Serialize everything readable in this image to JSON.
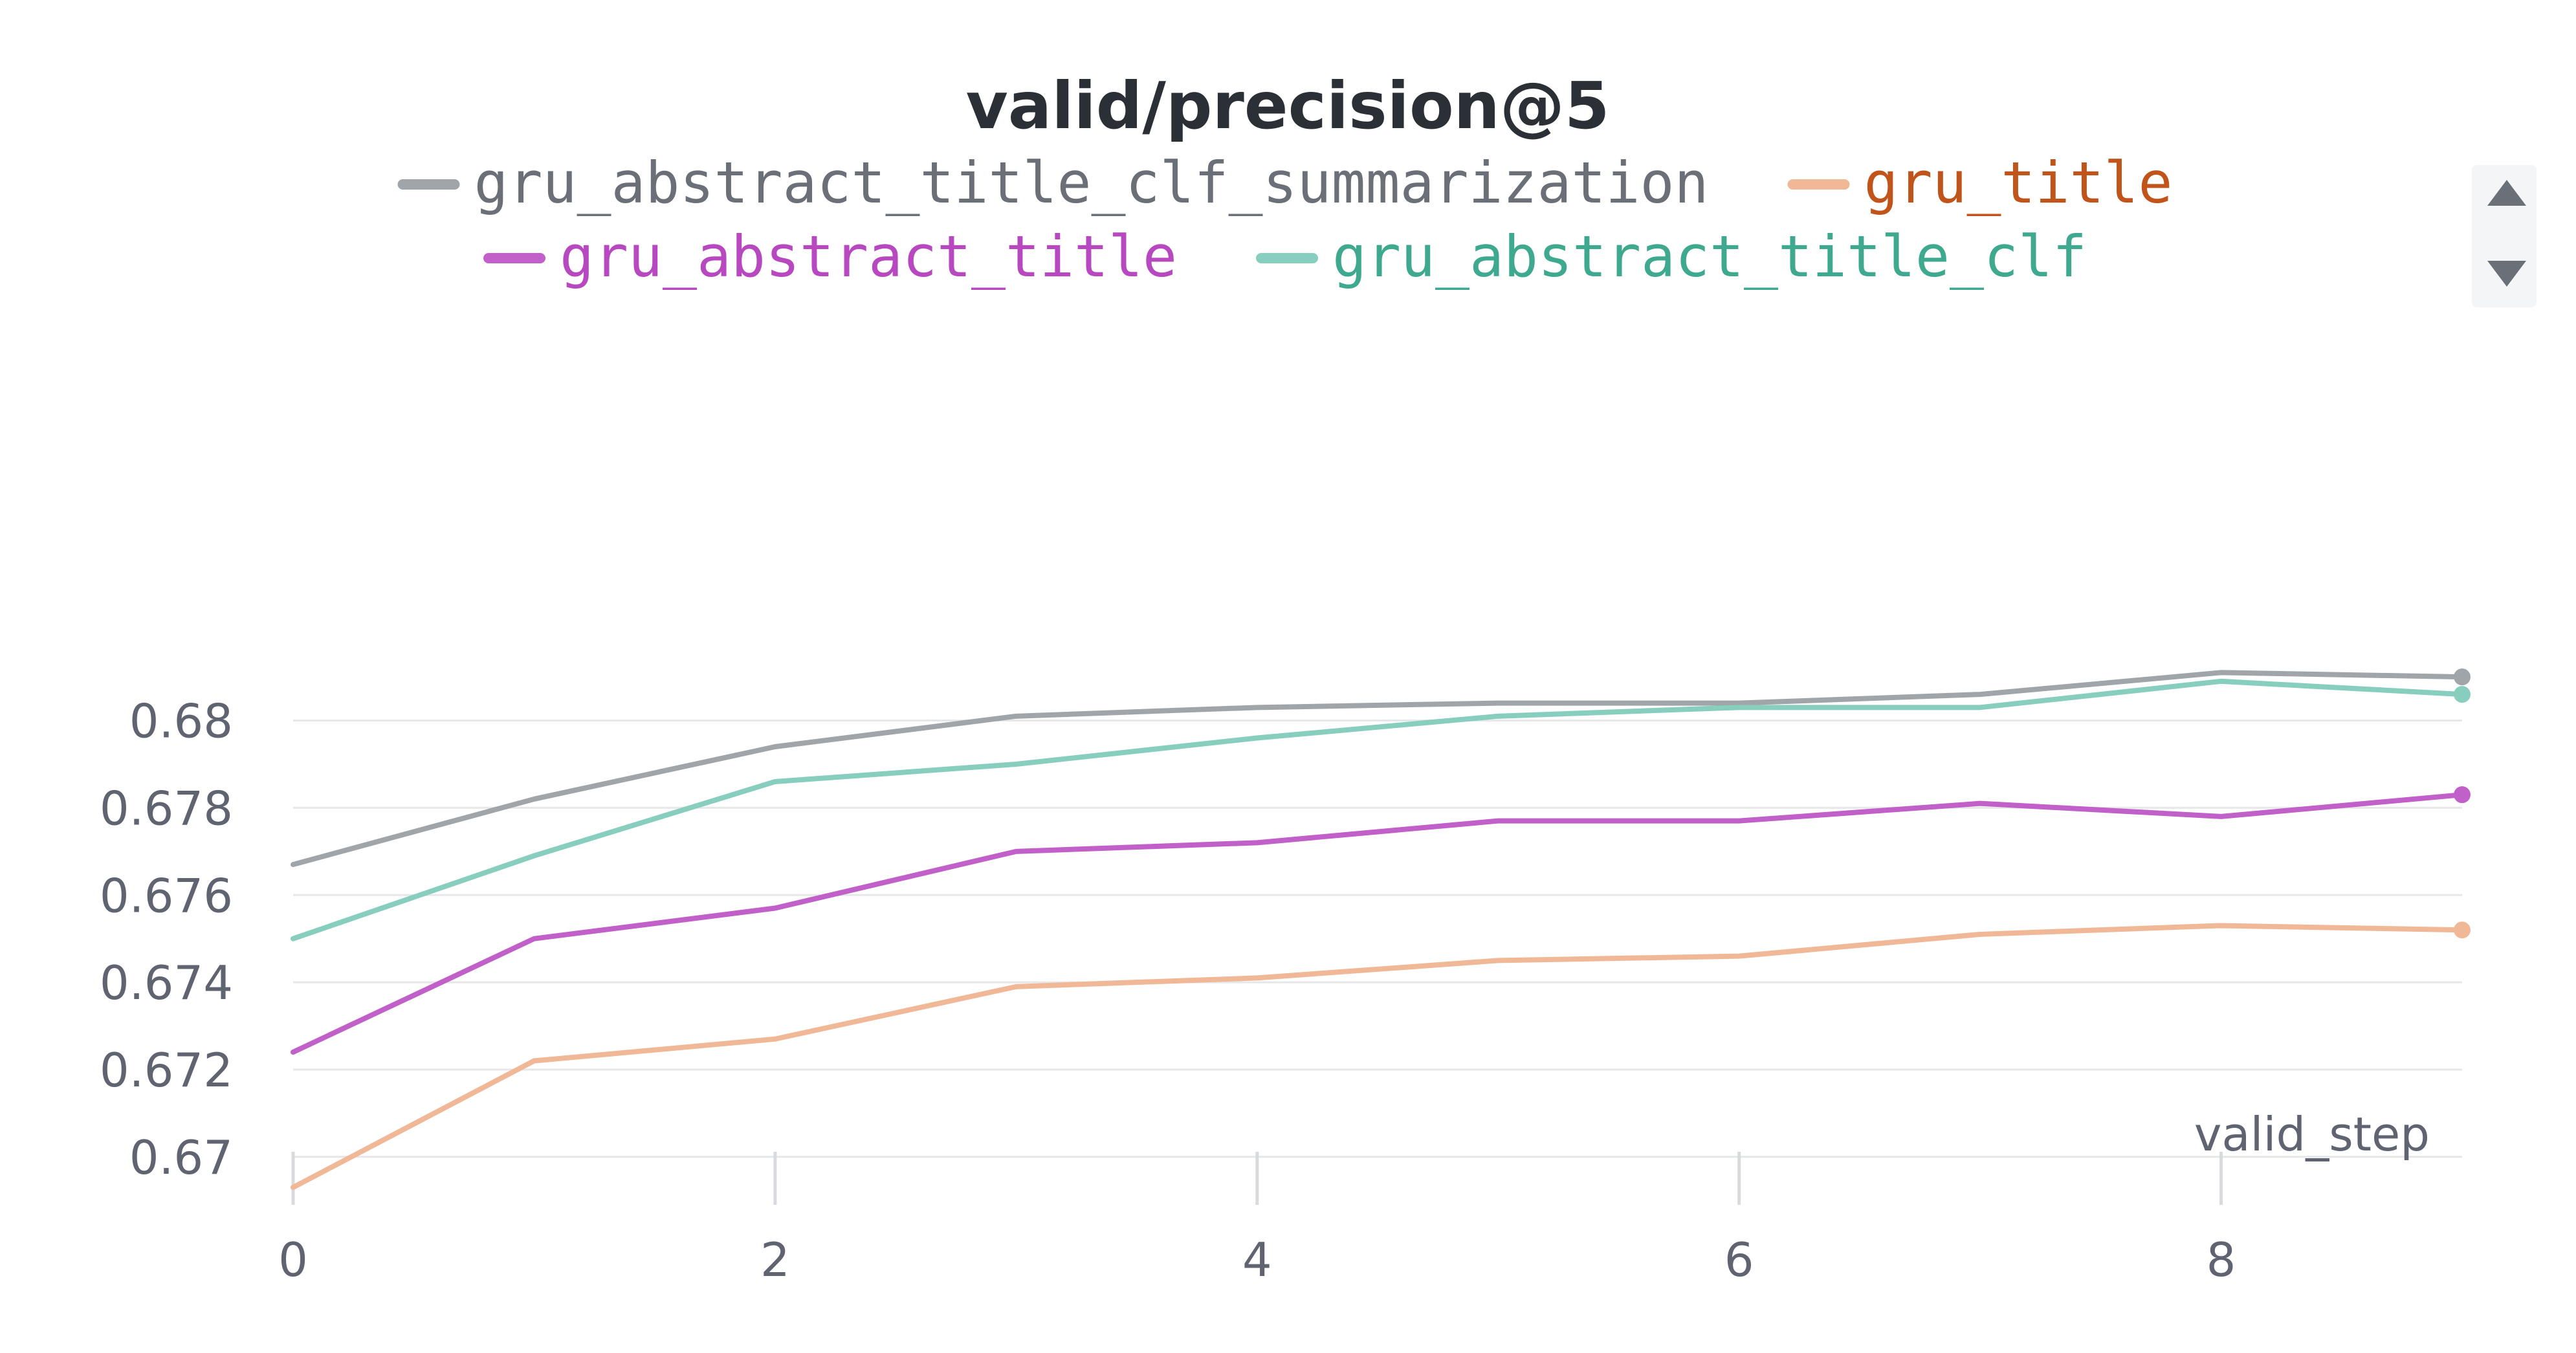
{
  "chart_data": {
    "type": "line",
    "title": "valid/precision@5",
    "xlabel": "valid_step",
    "ylabel": "",
    "x": [
      0,
      1,
      2,
      3,
      4,
      5,
      6,
      7,
      8,
      9
    ],
    "xlim": [
      0,
      9
    ],
    "ylim": [
      0.6693,
      0.6891
    ],
    "x_ticks": [
      0,
      2,
      4,
      6,
      8
    ],
    "x_tick_labels": [
      "0",
      "2",
      "4",
      "6",
      "8"
    ],
    "y_ticks": [
      0.67,
      0.672,
      0.674,
      0.676,
      0.678,
      0.68
    ],
    "y_tick_labels": [
      "0.67",
      "0.672",
      "0.674",
      "0.676",
      "0.678",
      "0.68"
    ],
    "grid": true,
    "legend_position": "top",
    "series": [
      {
        "name": "gru_abstract_title_clf_summarization",
        "color": "#a0a5aa",
        "label_color": "#6b7078",
        "values": [
          0.6767,
          0.6782,
          0.6794,
          0.6801,
          0.6803,
          0.6804,
          0.6804,
          0.6806,
          0.6811,
          0.681
        ]
      },
      {
        "name": "gru_title",
        "color": "#f0b896",
        "label_color": "#c0541a",
        "values": [
          0.6693,
          0.6722,
          0.6727,
          0.6739,
          0.6741,
          0.6745,
          0.6746,
          0.6751,
          0.6753,
          0.6752
        ]
      },
      {
        "name": "gru_abstract_title",
        "color": "#c060c8",
        "label_color": "#b848c0",
        "values": [
          0.6724,
          0.675,
          0.6757,
          0.677,
          0.6772,
          0.6777,
          0.6777,
          0.6781,
          0.6778,
          0.6783
        ]
      },
      {
        "name": "gru_abstract_title_clf",
        "color": "#87cebe",
        "label_color": "#3fa98f",
        "values": [
          0.675,
          0.6769,
          0.6786,
          0.679,
          0.6796,
          0.6801,
          0.6803,
          0.6803,
          0.6809,
          0.6806
        ]
      }
    ]
  },
  "legend_scroll": {
    "up_icon": "triangle-up-icon",
    "down_icon": "triangle-down-icon",
    "bg_color": "#f4f5f6",
    "icon_color": "#6b7078"
  }
}
